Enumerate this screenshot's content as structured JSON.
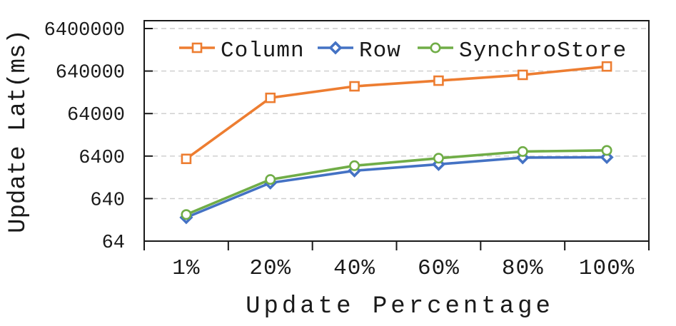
{
  "chart_data": {
    "type": "line",
    "title": "",
    "xlabel": "Update Percentage",
    "ylabel": "Update Lat(ms)",
    "categories": [
      "1%",
      "20%",
      "40%",
      "60%",
      "80%",
      "100%"
    ],
    "y_scale": "log",
    "y_ticks": [
      64,
      640,
      6400,
      64000,
      640000,
      6400000
    ],
    "ylim": [
      64,
      9800000
    ],
    "grid": "horizontal-dashed",
    "legend_position": "top-inside",
    "colors": {
      "axis": "#1a1a1a",
      "gridline": "#cccccc",
      "column": "#ED7D31",
      "row": "#4472C4",
      "synchrostore": "#70AD47"
    },
    "series": [
      {
        "name": "Column",
        "color": "#ED7D31",
        "marker": "square-open",
        "values": [
          5500,
          150000,
          280000,
          380000,
          520000,
          820000
        ]
      },
      {
        "name": "Row",
        "color": "#4472C4",
        "marker": "diamond",
        "values": [
          230,
          1500,
          2900,
          4100,
          5900,
          6000
        ]
      },
      {
        "name": "SynchroStore",
        "color": "#70AD47",
        "marker": "circle-open",
        "values": [
          270,
          1800,
          3800,
          5700,
          8200,
          8700
        ]
      }
    ]
  }
}
